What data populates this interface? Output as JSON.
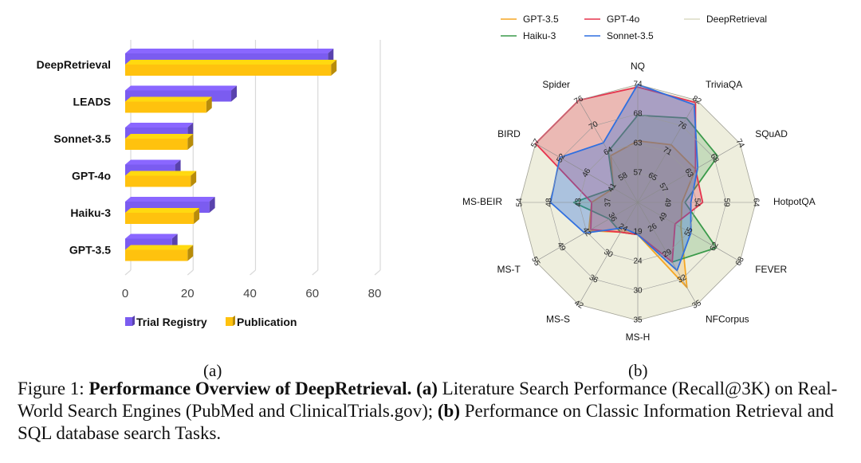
{
  "chart_data": [
    {
      "type": "bar",
      "orientation": "horizontal",
      "style": "3d",
      "categories": [
        "DeepRetrieval",
        "LEADS",
        "Sonnet-3.5",
        "GPT-4o",
        "Haiku-3",
        "GPT-3.5"
      ],
      "series": [
        {
          "name": "Trial Registry",
          "color": "#7b5cf0",
          "values": [
            65,
            34,
            20,
            16,
            27,
            15
          ]
        },
        {
          "name": "Publication",
          "color": "#ffc20e",
          "values": [
            66,
            26,
            20,
            21,
            22,
            20
          ]
        }
      ],
      "xlim": [
        0,
        80
      ],
      "xticks": [
        0,
        20,
        40,
        60,
        80
      ],
      "xtick_labels": [
        "0",
        "20",
        "40",
        "60",
        "80"
      ],
      "legend": "bottom",
      "title": "",
      "xlabel": "",
      "ylabel": ""
    },
    {
      "type": "radar",
      "axes": [
        "NQ",
        "TriviaQA",
        "SQuAD",
        "HotpotQA",
        "FEVER",
        "NFCorpus",
        "MS-H",
        "MS-S",
        "MS-T",
        "MS-BEIR",
        "BIRD",
        "Spider"
      ],
      "axis_tick_labels": [
        [
          "57",
          "63",
          "68",
          "74"
        ],
        [
          "65",
          "71",
          "76",
          "82"
        ],
        [
          "57",
          "63",
          "68",
          "74"
        ],
        [
          "49",
          "54",
          "59",
          "64"
        ],
        [
          "49",
          "55",
          "62",
          "68"
        ],
        [
          "26",
          "29",
          "32",
          "35"
        ],
        [
          "19",
          "24",
          "30",
          "35"
        ],
        [
          "24",
          "30",
          "36",
          "42"
        ],
        [
          "36",
          "42",
          "49",
          "55"
        ],
        [
          "37",
          "43",
          "48",
          "54"
        ],
        [
          "41",
          "46",
          "52",
          "57"
        ],
        [
          "58",
          "64",
          "70",
          "76"
        ]
      ],
      "axis_ranges": [
        [
          51,
          74
        ],
        [
          59,
          82
        ],
        [
          51,
          74
        ],
        [
          44,
          64
        ],
        [
          42,
          68
        ],
        [
          23,
          35
        ],
        [
          13,
          35
        ],
        [
          18,
          42
        ],
        [
          30,
          55
        ],
        [
          31,
          54
        ],
        [
          36,
          57
        ],
        [
          52,
          76
        ]
      ],
      "series": [
        {
          "name": "GPT-3.5",
          "color": "#f5a623",
          "values": [
            63,
            72,
            64,
            51.5,
            53,
            33,
            19,
            25,
            42,
            40,
            41,
            63
          ]
        },
        {
          "name": "GPT-4o",
          "color": "#e6334d",
          "values": [
            73.5,
            81.5,
            64,
            55,
            51.5,
            30,
            19,
            25,
            41.5,
            40,
            57,
            76
          ]
        },
        {
          "name": "Haiku-3",
          "color": "#3a9a4a",
          "values": [
            68,
            78,
            69,
            52,
            62,
            30,
            19,
            25,
            37,
            43.5,
            41,
            64
          ]
        },
        {
          "name": "Sonnet-3.5",
          "color": "#2f6fe0",
          "values": [
            74,
            81,
            64.5,
            53,
            55.5,
            31,
            19,
            24,
            43,
            48,
            52,
            66
          ]
        },
        {
          "name": "DeepRetrieval",
          "color": "#e8e8cc",
          "values": [
            74,
            82,
            74,
            64,
            68,
            35,
            35,
            42,
            55,
            54,
            57,
            76
          ]
        }
      ],
      "legend": "top"
    }
  ],
  "subfigure_labels": {
    "a": "(a)",
    "b": "(b)"
  },
  "caption": {
    "prefix": "Figure 1: ",
    "bold_title": "Performance Overview of DeepRetrieval.",
    "part_a_label": " (a)",
    "part_a_text": " Literature Search Performance (Recall@3K) on Real-World Search Engines (PubMed and ClinicalTrials.gov); ",
    "part_b_label": "(b)",
    "part_b_text": " Performance on Classic Information Retrieval and SQL database search Tasks."
  }
}
